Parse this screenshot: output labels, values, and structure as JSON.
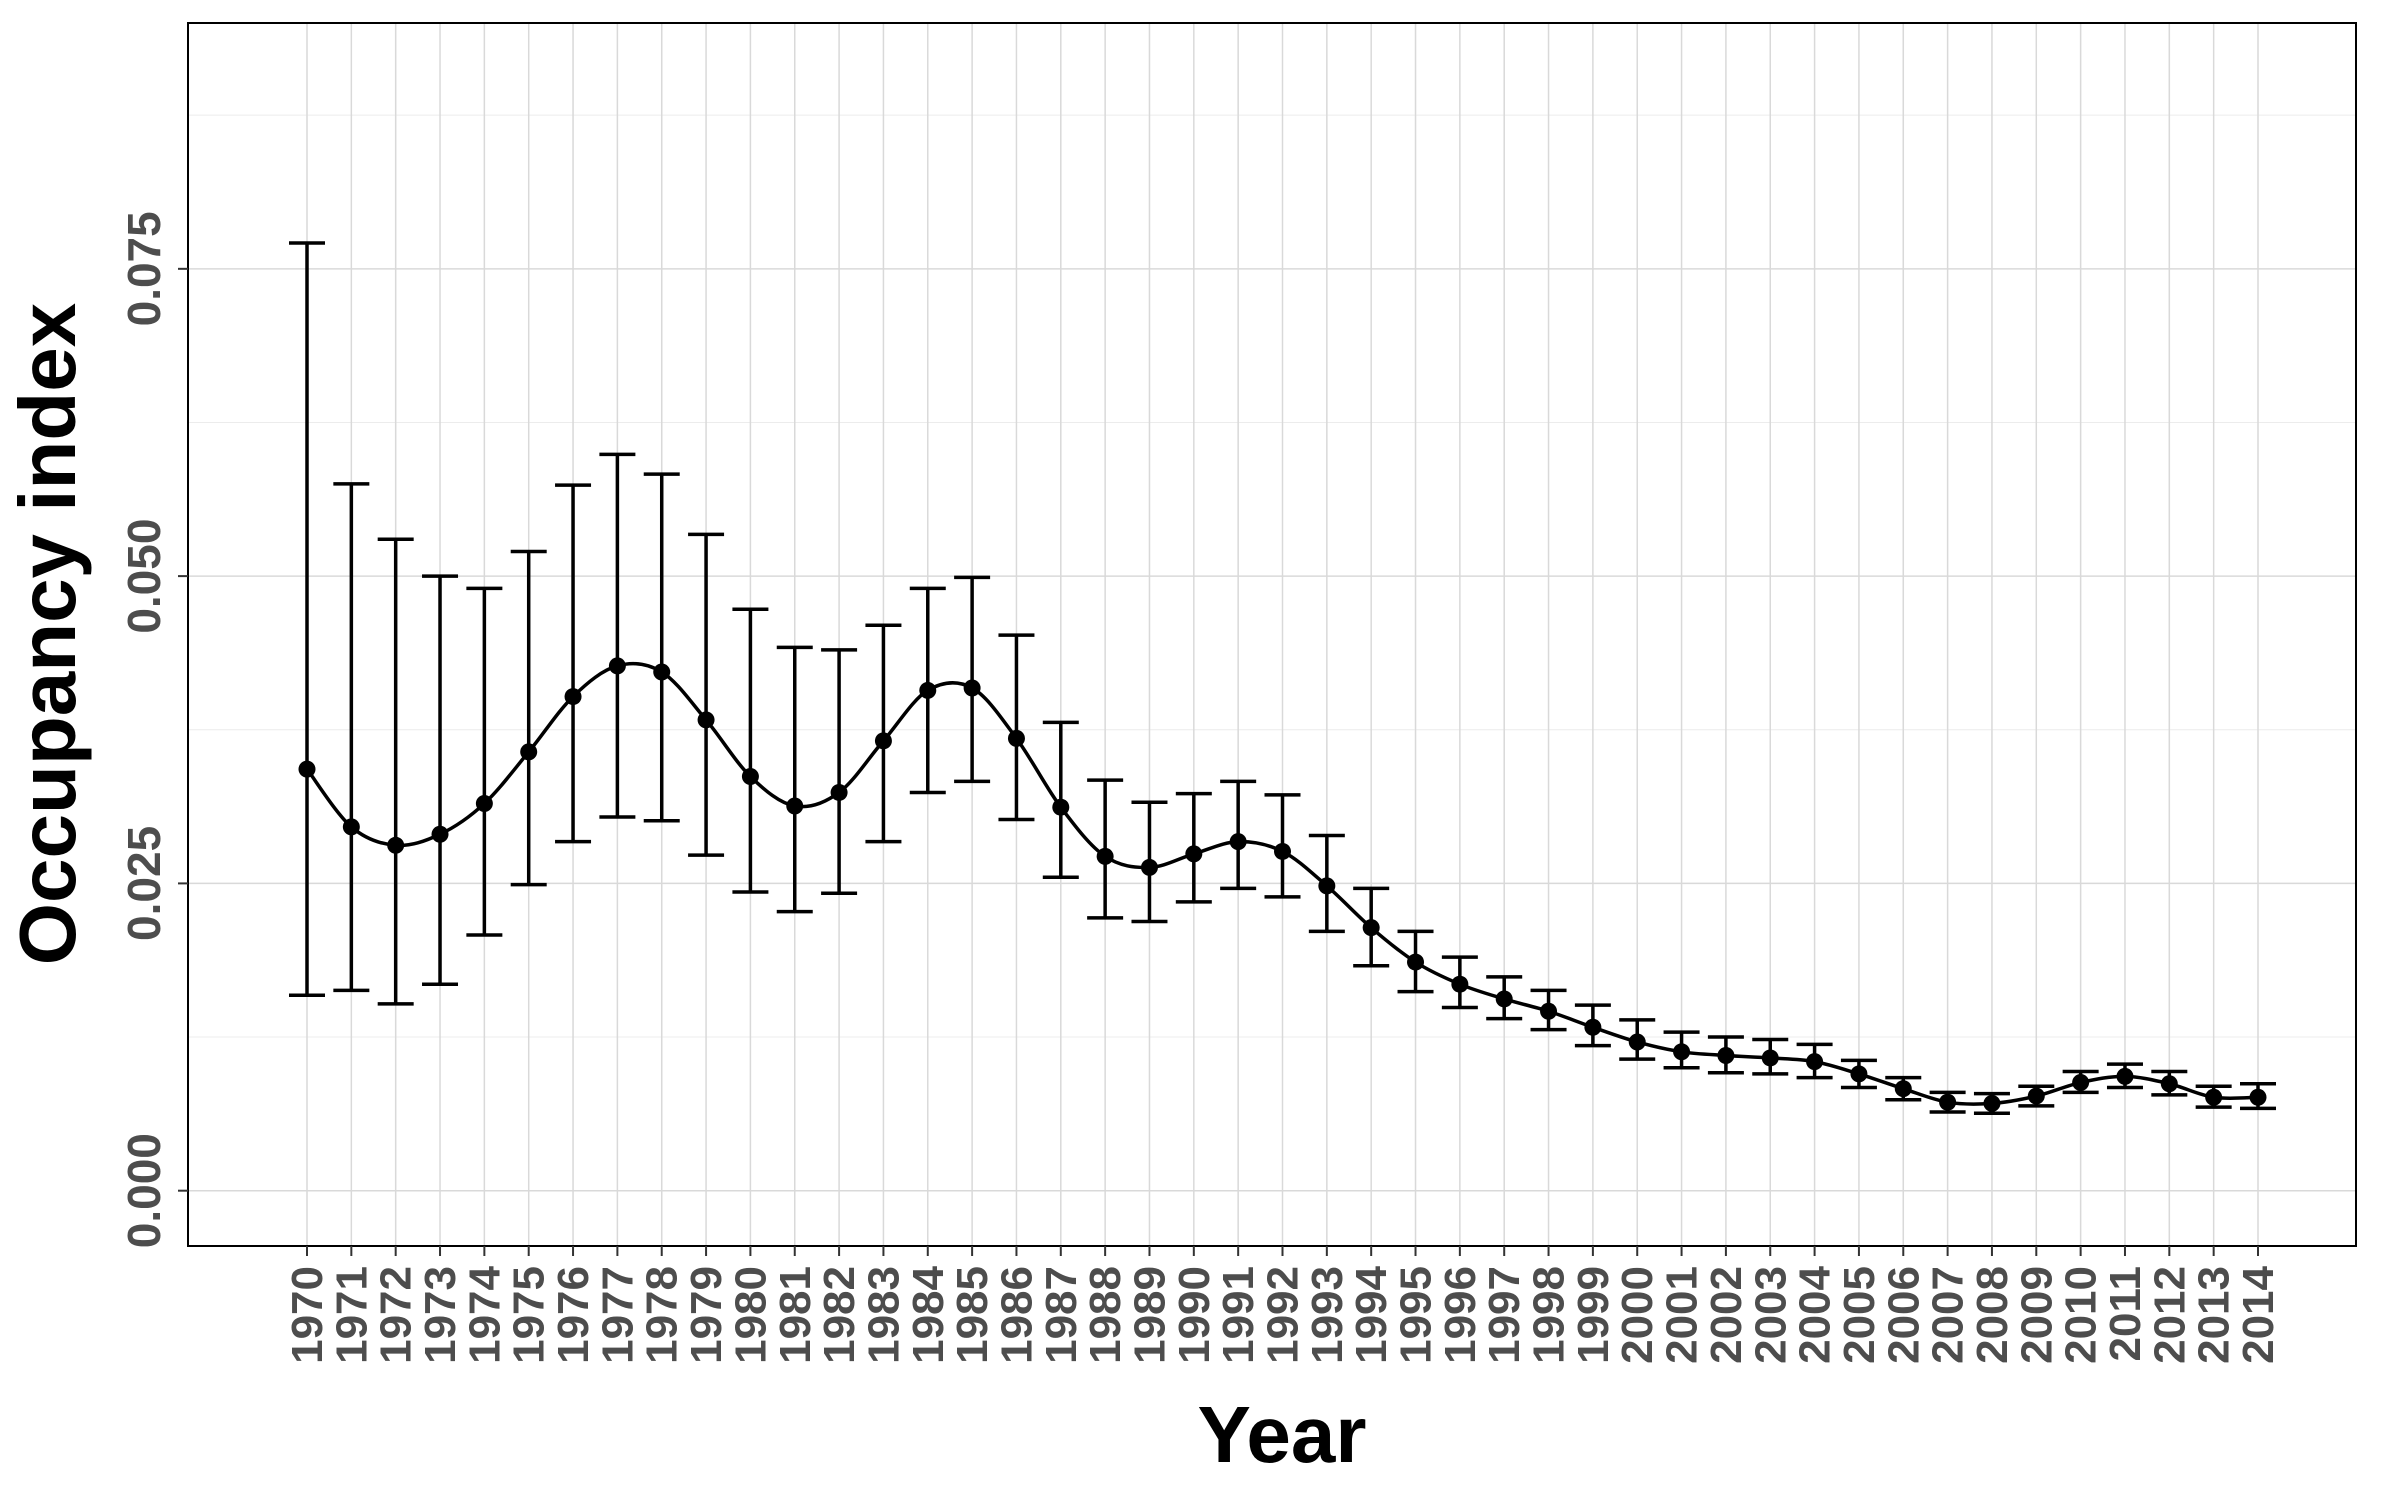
{
  "chart_data": {
    "type": "line",
    "xlabel": "Year",
    "ylabel": "Occupancy index",
    "ylim": [
      -0.0045,
      0.095
    ],
    "y_ticks": [
      0.0,
      0.025,
      0.05,
      0.075
    ],
    "y_tick_labels": [
      "0.000",
      "0.025",
      "0.050",
      "0.075"
    ],
    "grid": true,
    "error_bars": true,
    "x": [
      1970,
      1971,
      1972,
      1973,
      1974,
      1975,
      1976,
      1977,
      1978,
      1979,
      1980,
      1981,
      1982,
      1983,
      1984,
      1985,
      1986,
      1987,
      1988,
      1989,
      1990,
      1991,
      1992,
      1993,
      1994,
      1995,
      1996,
      1997,
      1998,
      1999,
      2000,
      2001,
      2002,
      2003,
      2004,
      2005,
      2006,
      2007,
      2008,
      2009,
      2010,
      2011,
      2012,
      2013,
      2014
    ],
    "x_tick_labels": [
      "1970",
      "1971",
      "1972",
      "1973",
      "1974",
      "1975",
      "1976",
      "1977",
      "1978",
      "1979",
      "1980",
      "1981",
      "1982",
      "1983",
      "1984",
      "1985",
      "1986",
      "1987",
      "1988",
      "1989",
      "1990",
      "1991",
      "1992",
      "1993",
      "1994",
      "1995",
      "1996",
      "1997",
      "1998",
      "1999",
      "2000",
      "2001",
      "2002",
      "2003",
      "2004",
      "2005",
      "2006",
      "2007",
      "2008",
      "2009",
      "2010",
      "2011",
      "2012",
      "2013",
      "2014"
    ],
    "series": [
      {
        "values": [
          0.0343,
          0.0296,
          0.0281,
          0.029,
          0.0315,
          0.0357,
          0.0402,
          0.0427,
          0.0422,
          0.0383,
          0.0337,
          0.0313,
          0.0324,
          0.0366,
          0.0407,
          0.0409,
          0.0368,
          0.0312,
          0.0272,
          0.0263,
          0.0274,
          0.0284,
          0.0276,
          0.0248,
          0.0214,
          0.0186,
          0.0168,
          0.0156,
          0.0146,
          0.0133,
          0.0121,
          0.0113,
          0.011,
          0.0108,
          0.0105,
          0.0095,
          0.0083,
          0.0072,
          0.0071,
          0.0077,
          0.0088,
          0.0093,
          0.0087,
          0.0076,
          0.0076
        ],
        "lower": [
          0.0159,
          0.0163,
          0.0152,
          0.0168,
          0.0208,
          0.0249,
          0.0284,
          0.0304,
          0.0301,
          0.0273,
          0.0243,
          0.0227,
          0.0242,
          0.0284,
          0.0324,
          0.0333,
          0.0302,
          0.0255,
          0.0222,
          0.0219,
          0.0235,
          0.0246,
          0.0239,
          0.0211,
          0.0183,
          0.0162,
          0.0149,
          0.014,
          0.0131,
          0.0118,
          0.0107,
          0.01,
          0.0096,
          0.0095,
          0.0092,
          0.0084,
          0.0074,
          0.0064,
          0.0063,
          0.0069,
          0.008,
          0.0084,
          0.0078,
          0.0068,
          0.0067
        ],
        "upper": [
          0.0771,
          0.0575,
          0.053,
          0.05,
          0.049,
          0.052,
          0.0574,
          0.0599,
          0.0583,
          0.0534,
          0.0473,
          0.0442,
          0.044,
          0.046,
          0.049,
          0.0499,
          0.0452,
          0.0381,
          0.0334,
          0.0316,
          0.0323,
          0.0333,
          0.0322,
          0.0289,
          0.0246,
          0.0211,
          0.019,
          0.0174,
          0.0163,
          0.0151,
          0.0139,
          0.0129,
          0.0125,
          0.0123,
          0.0119,
          0.0106,
          0.0092,
          0.008,
          0.0079,
          0.0085,
          0.0097,
          0.0103,
          0.0097,
          0.0085,
          0.0087
        ]
      }
    ],
    "colors": {
      "line": "#000000",
      "grid": "#d9d9d9",
      "border": "#000000",
      "tick_label": "#4d4d4d",
      "background": "#ffffff"
    }
  }
}
